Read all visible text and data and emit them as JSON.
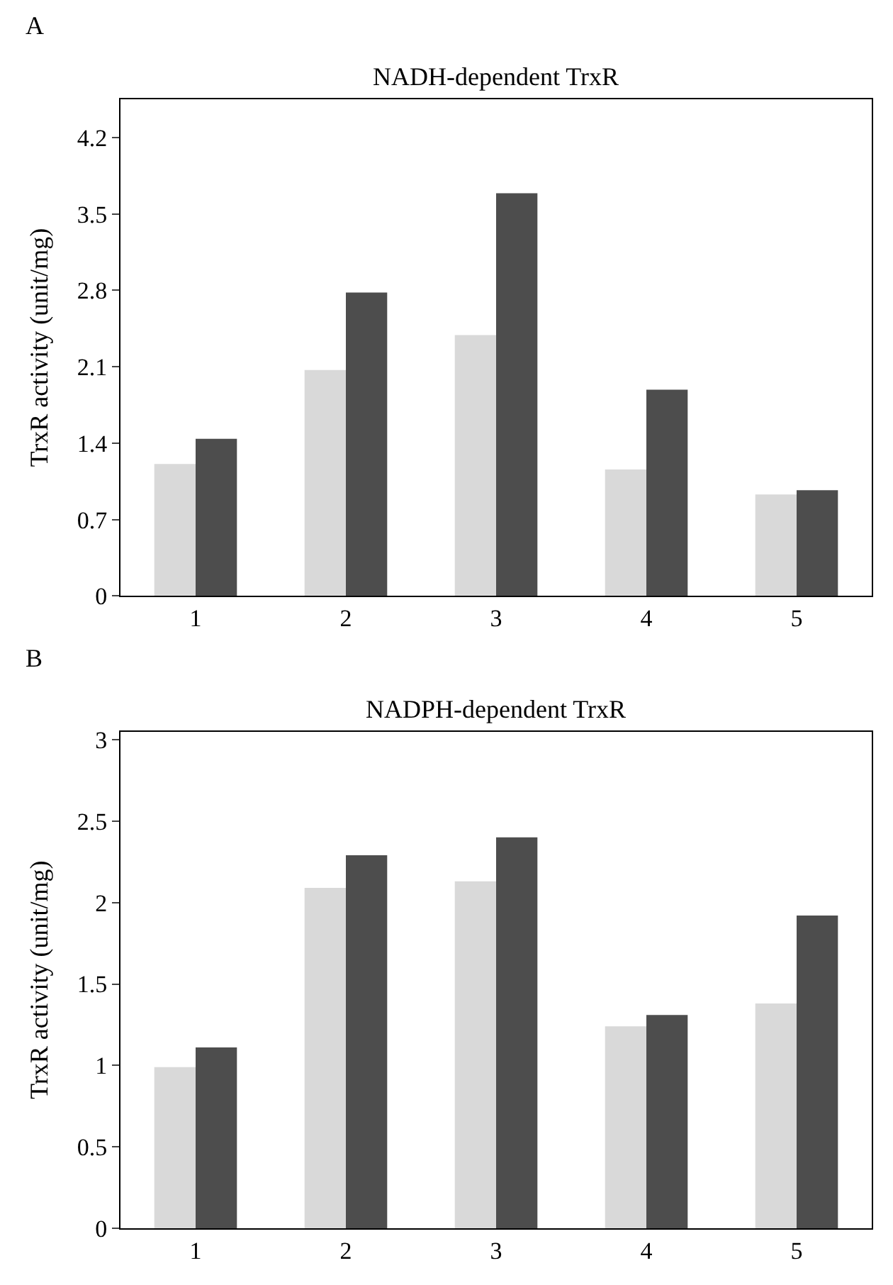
{
  "chart_data": [
    {
      "type": "bar",
      "title": "NADH-dependent TrxR",
      "ylabel": "TrxR activity (unit/mg)",
      "annotations": [
        "A"
      ],
      "categories": [
        "1",
        "2",
        "3",
        "4",
        "5"
      ],
      "series": [
        {
          "color": "#d9d9d9",
          "values": [
            1.21,
            2.07,
            2.39,
            1.16,
            0.93
          ]
        },
        {
          "color": "#4d4d4d",
          "values": [
            1.44,
            2.78,
            3.69,
            1.89,
            0.97
          ]
        }
      ],
      "ylim": [
        0,
        4.55
      ],
      "yticks": [
        0,
        0.7,
        1.4,
        2.1,
        2.8,
        3.5,
        4.2
      ]
    },
    {
      "type": "bar",
      "title": "NADPH-dependent TrxR",
      "ylabel": "TrxR activity (unit/mg)",
      "annotations": [
        "B"
      ],
      "categories": [
        "1",
        "2",
        "3",
        "4",
        "5"
      ],
      "series": [
        {
          "color": "#d9d9d9",
          "values": [
            0.99,
            2.09,
            2.13,
            1.24,
            1.38
          ]
        },
        {
          "color": "#4d4d4d",
          "values": [
            1.11,
            2.29,
            2.4,
            1.31,
            1.92
          ]
        }
      ],
      "ylim": [
        0,
        3.05
      ],
      "yticks": [
        0,
        0.5,
        1,
        1.5,
        2,
        2.5,
        3
      ]
    }
  ]
}
